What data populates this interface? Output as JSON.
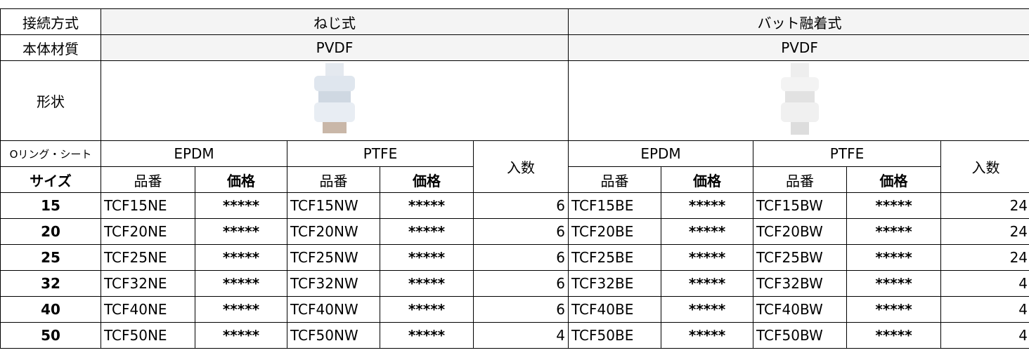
{
  "header": {
    "connection_label": "接続方式",
    "connection_types": [
      "ねじ式",
      "バット融着式"
    ],
    "material_label": "本体材質",
    "materials": [
      "PVDF",
      "PVDF"
    ],
    "shape_label": "形状",
    "seal_label": "Oリング・シート",
    "seals": [
      "EPDM",
      "PTFE",
      "EPDM",
      "PTFE"
    ],
    "quantity_labels": [
      "入数",
      "入数"
    ],
    "size_label": "サイズ",
    "sub_labels": [
      "品番",
      "価格",
      "品番",
      "価格",
      "品番",
      "価格",
      "品番",
      "価格"
    ]
  },
  "rows": [
    [
      "15",
      "TCF15NE",
      "*****",
      "TCF15NW",
      "*****",
      "6",
      "TCF15BE",
      "*****",
      "TCF15BW",
      "*****",
      "24"
    ],
    [
      "20",
      "TCF20NE",
      "*****",
      "TCF20NW",
      "*****",
      "6",
      "TCF20BE",
      "*****",
      "TCF20BW",
      "*****",
      "24"
    ],
    [
      "25",
      "TCF25NE",
      "*****",
      "TCF25NW",
      "*****",
      "6",
      "TCF25BE",
      "*****",
      "TCF25BW",
      "*****",
      "24"
    ],
    [
      "32",
      "TCF32NE",
      "*****",
      "TCF32NW",
      "*****",
      "6",
      "TCF32BE",
      "*****",
      "TCF32BW",
      "*****",
      "4"
    ],
    [
      "40",
      "TCF40NE",
      "*****",
      "TCF40NW",
      "*****",
      "6",
      "TCF40BE",
      "*****",
      "TCF40BW",
      "*****",
      "4"
    ],
    [
      "50",
      "TCF50NE",
      "*****",
      "TCF50NW",
      "*****",
      "4",
      "TCF50BE",
      "*****",
      "TCF50BW",
      "*****",
      "4"
    ]
  ]
}
